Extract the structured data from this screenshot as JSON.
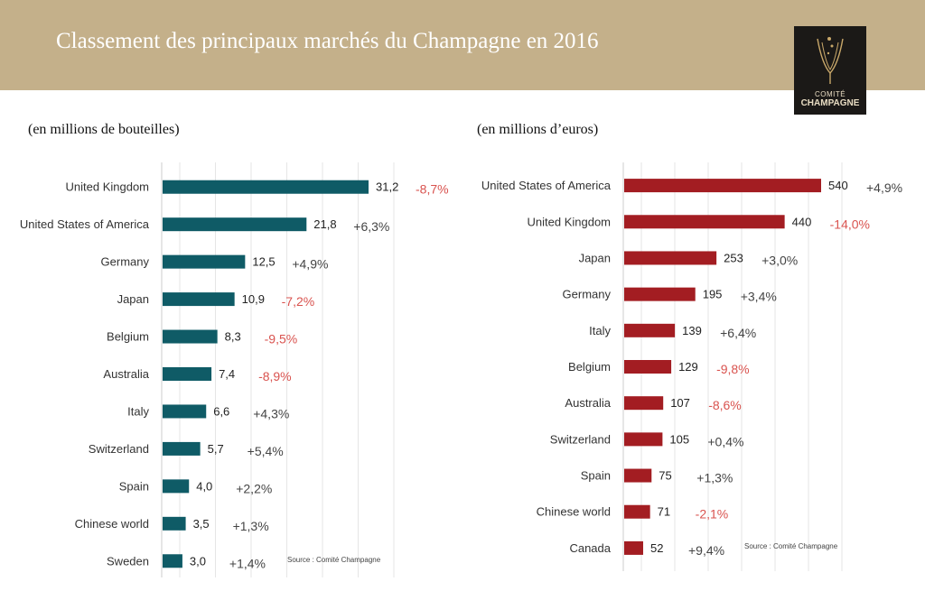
{
  "header": {
    "title": "Classement des principaux marchés du Champagne en 2016",
    "logo_line1": "COMITÉ",
    "logo_line2": "CHAMPAGNE",
    "background_color": "#c4b08a"
  },
  "chart_data": [
    {
      "type": "bar",
      "orientation": "horizontal",
      "title": "",
      "subtitle": "(en millions de bouteilles)",
      "color": "#0f5b66",
      "categories": [
        "United Kingdom",
        "United States of America",
        "Germany",
        "Japan",
        "Belgium",
        "Australia",
        "Italy",
        "Switzerland",
        "Spain",
        "Chinese world",
        "Sweden"
      ],
      "values": [
        31.2,
        21.8,
        12.5,
        10.9,
        8.3,
        7.4,
        6.6,
        5.7,
        4.0,
        3.5,
        3.0
      ],
      "value_labels": [
        "31,2",
        "21,8",
        "12,5",
        "10,9",
        "8,3",
        "7,4",
        "6,6",
        "5,7",
        "4,0",
        "3,5",
        "3,0"
      ],
      "changes": [
        "-8,7%",
        "+6,3%",
        "+4,9%",
        "-7,2%",
        "-9,5%",
        "-8,9%",
        "+4,3%",
        "+5,4%",
        "+2,2%",
        "+1,3%",
        "+1,4%"
      ],
      "positive_color": "#444444",
      "negative_color": "#d9534f",
      "grid": true,
      "source": "Source : Comité Champagne"
    },
    {
      "type": "bar",
      "orientation": "horizontal",
      "title": "",
      "subtitle": "(en millions d’euros)",
      "color": "#a31d22",
      "categories": [
        "United States of America",
        "United Kingdom",
        "Japan",
        "Germany",
        "Italy",
        "Belgium",
        "Australia",
        "Switzerland",
        "Spain",
        "Chinese world",
        "Canada"
      ],
      "values": [
        540,
        440,
        253,
        195,
        139,
        129,
        107,
        105,
        75,
        71,
        52
      ],
      "value_labels": [
        "540",
        "440",
        "253",
        "195",
        "139",
        "129",
        "107",
        "105",
        "75",
        "71",
        "52"
      ],
      "changes": [
        "+4,9%",
        "-14,0%",
        "+3,0%",
        "+3,4%",
        "+6,4%",
        "-9,8%",
        "-8,6%",
        "+0,4%",
        "+1,3%",
        "-2,1%",
        "+9,4%"
      ],
      "positive_color": "#444444",
      "negative_color": "#d9534f",
      "grid": true,
      "source": "Source : Comité Champagne"
    }
  ]
}
